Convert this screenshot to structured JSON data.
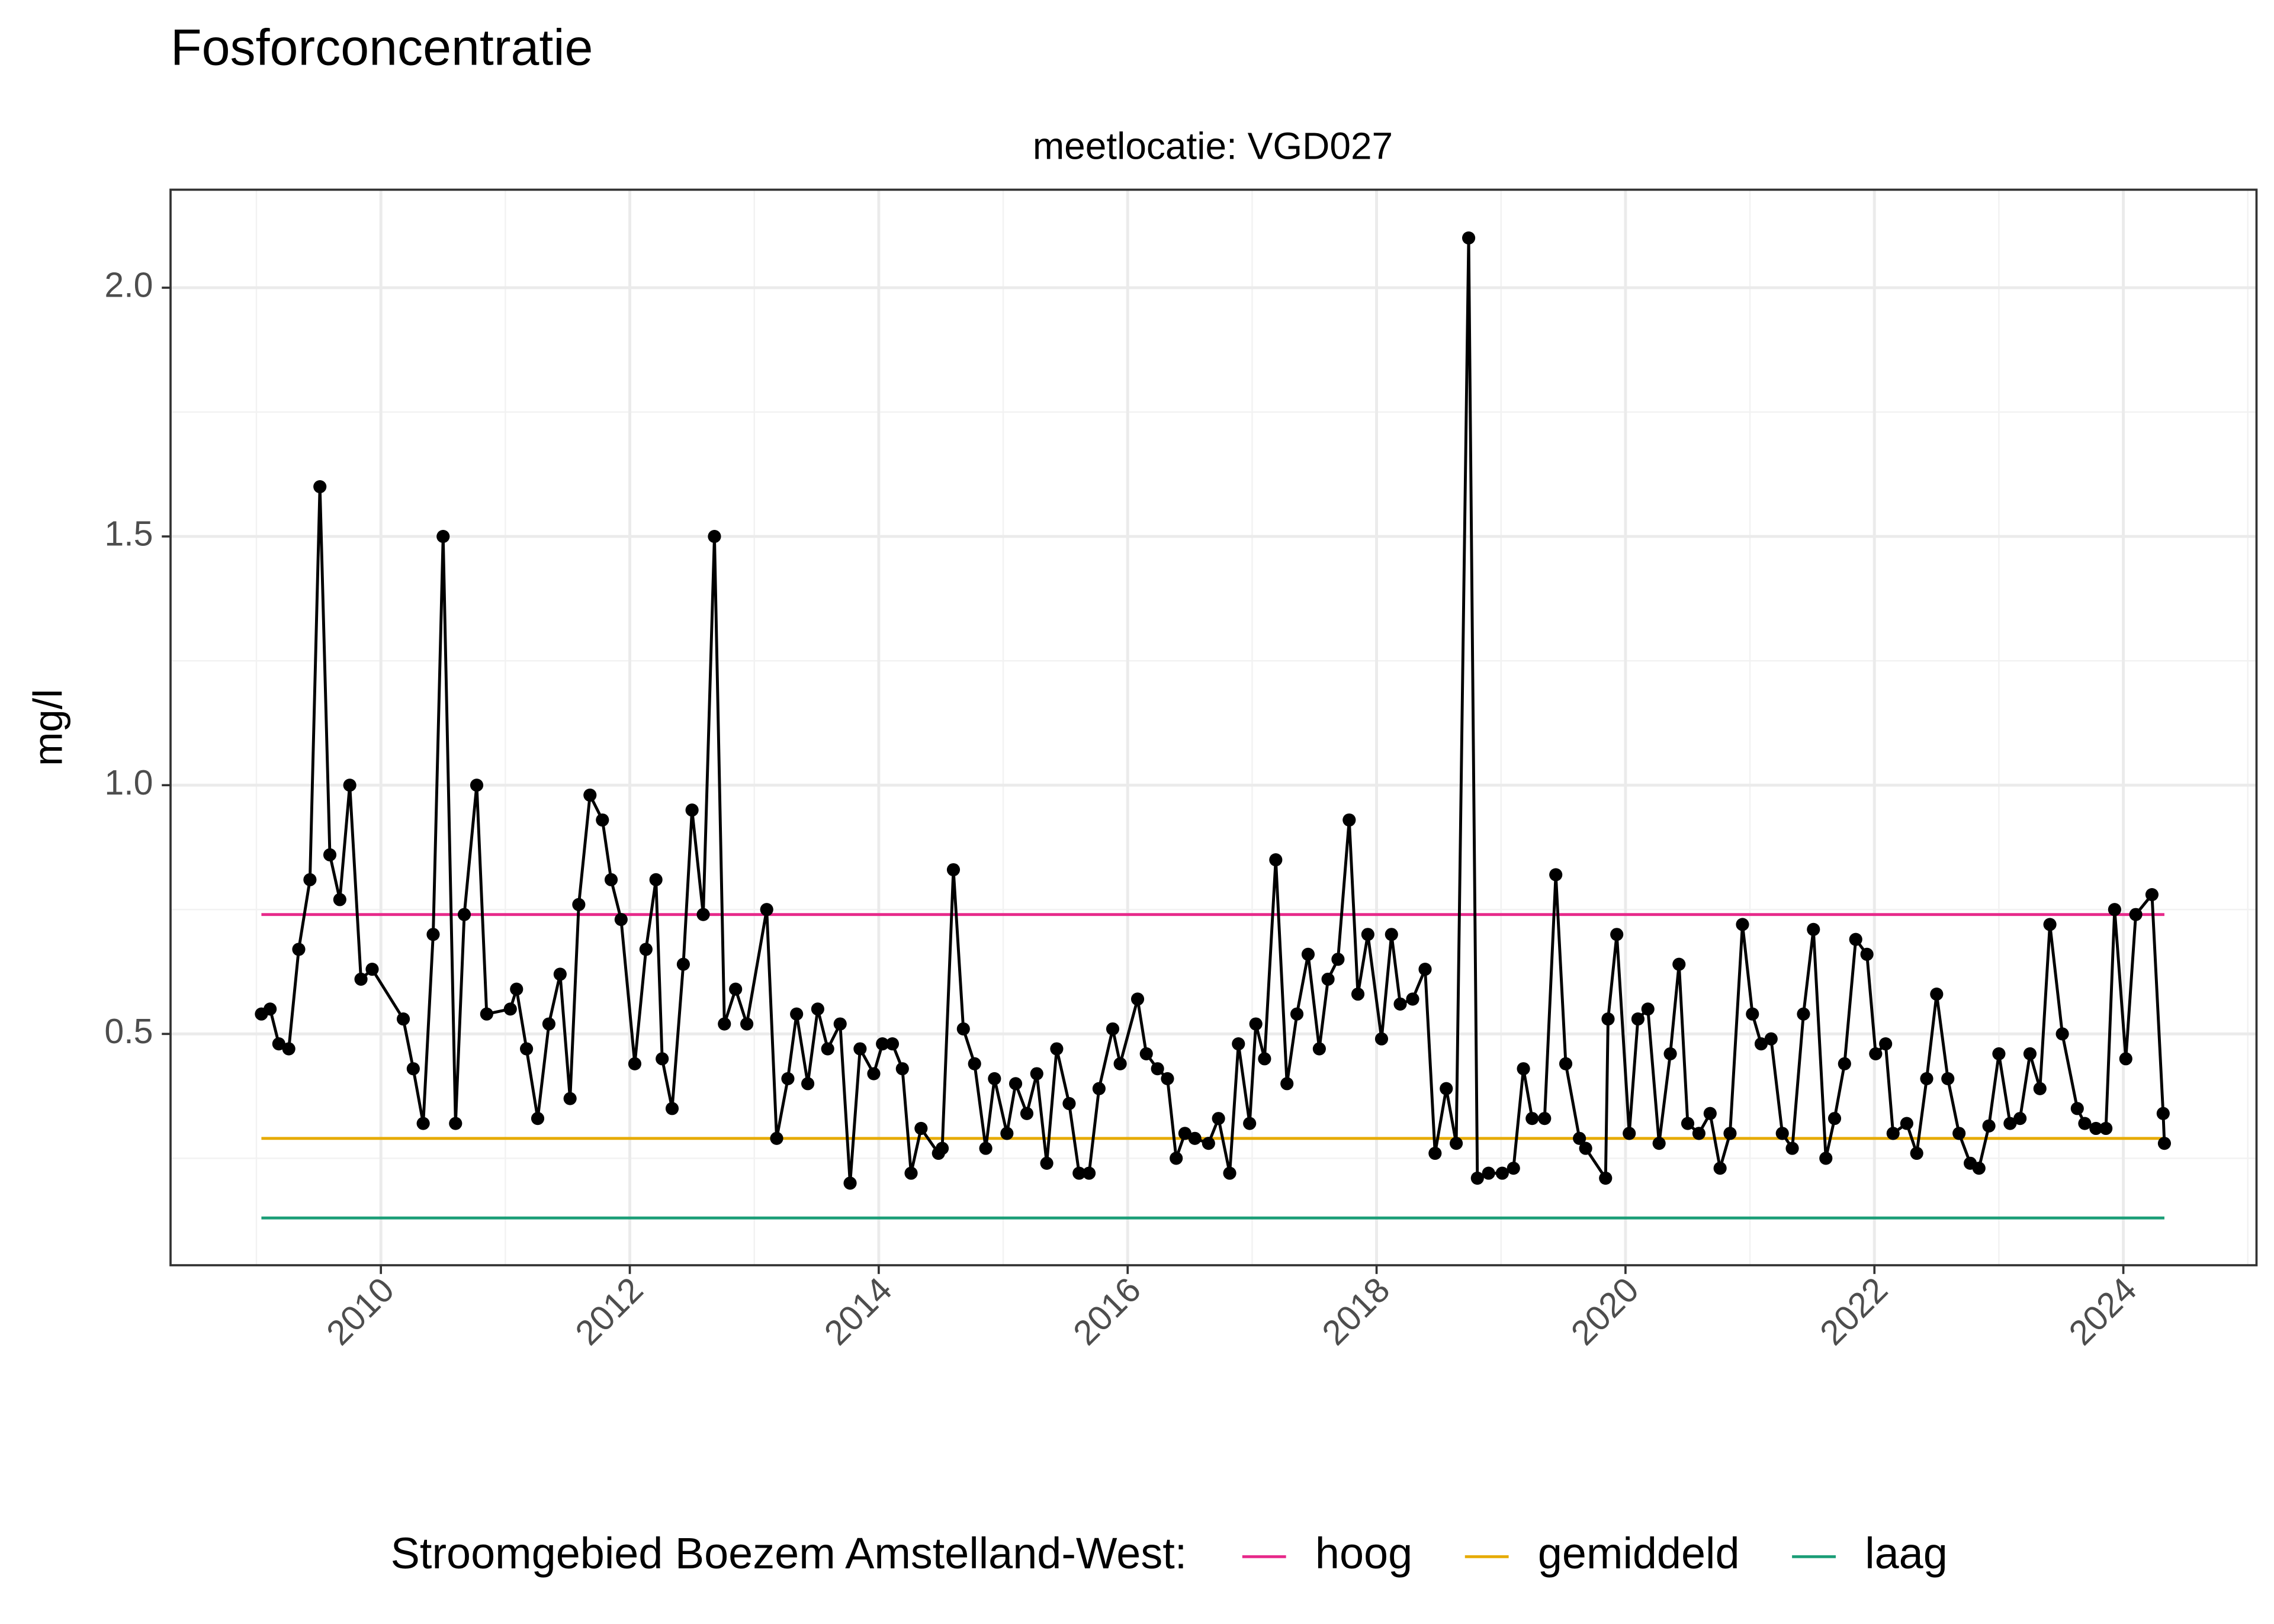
{
  "chart_data": {
    "type": "line",
    "title": "Fosforconcentratie",
    "subtitle": "meetlocatie: VGD027",
    "y_label": "mg/l",
    "color": "#000000",
    "x": [
      2009.04,
      2009.11,
      2009.18,
      2009.26,
      2009.34,
      2009.43,
      2009.51,
      2009.59,
      2009.67,
      2009.75,
      2009.84,
      2009.93,
      2010.18,
      2010.26,
      2010.34,
      2010.42,
      2010.5,
      2010.6,
      2010.67,
      2010.77,
      2010.85,
      2011.04,
      2011.09,
      2011.17,
      2011.26,
      2011.35,
      2011.44,
      2011.52,
      2011.59,
      2011.68,
      2011.78,
      2011.85,
      2011.93,
      2012.04,
      2012.13,
      2012.21,
      2012.26,
      2012.34,
      2012.43,
      2012.5,
      2012.59,
      2012.68,
      2012.76,
      2012.85,
      2012.94,
      2013.1,
      2013.18,
      2013.27,
      2013.34,
      2013.43,
      2013.51,
      2013.59,
      2013.69,
      2013.77,
      2013.85,
      2013.96,
      2014.03,
      2014.11,
      2014.19,
      2014.26,
      2014.34,
      2014.48,
      2014.51,
      2014.6,
      2014.68,
      2014.77,
      2014.86,
      2014.93,
      2015.03,
      2015.1,
      2015.19,
      2015.27,
      2015.35,
      2015.43,
      2015.53,
      2015.61,
      2015.69,
      2015.77,
      2015.88,
      2015.94,
      2016.08,
      2016.15,
      2016.24,
      2016.32,
      2016.39,
      2016.46,
      2016.54,
      2016.65,
      2016.73,
      2016.82,
      2016.89,
      2016.98,
      2017.03,
      2017.1,
      2017.19,
      2017.28,
      2017.36,
      2017.45,
      2017.54,
      2017.61,
      2017.69,
      2017.78,
      2017.85,
      2017.93,
      2018.04,
      2018.12,
      2018.19,
      2018.29,
      2018.39,
      2018.47,
      2018.56,
      2018.64,
      2018.74,
      2018.81,
      2018.9,
      2019.01,
      2019.1,
      2019.18,
      2019.25,
      2019.35,
      2019.44,
      2019.52,
      2019.63,
      2019.68,
      2019.84,
      2019.86,
      2019.93,
      2020.03,
      2020.1,
      2020.18,
      2020.27,
      2020.36,
      2020.43,
      2020.5,
      2020.59,
      2020.68,
      2020.76,
      2020.84,
      2020.94,
      2021.02,
      2021.09,
      2021.17,
      2021.26,
      2021.34,
      2021.43,
      2021.51,
      2021.61,
      2021.68,
      2021.76,
      2021.85,
      2021.94,
      2022.01,
      2022.09,
      2022.15,
      2022.26,
      2022.34,
      2022.42,
      2022.5,
      2022.59,
      2022.68,
      2022.77,
      2022.84,
      2022.92,
      2023.0,
      2023.09,
      2023.17,
      2023.25,
      2023.33,
      2023.41,
      2023.51,
      2023.63,
      2023.69,
      2023.78,
      2023.86,
      2023.93,
      2024.02,
      2024.1,
      2024.23,
      2024.32,
      2024.33
    ],
    "values": [
      0.54,
      0.55,
      0.48,
      0.47,
      0.67,
      0.81,
      1.6,
      0.86,
      0.77,
      1.0,
      0.61,
      0.63,
      0.53,
      0.43,
      0.32,
      0.7,
      1.5,
      0.32,
      0.74,
      1.0,
      0.54,
      0.55,
      0.59,
      0.47,
      0.33,
      0.52,
      0.62,
      0.37,
      0.76,
      0.98,
      0.93,
      0.81,
      0.73,
      0.44,
      0.67,
      0.81,
      0.45,
      0.35,
      0.64,
      0.95,
      0.74,
      1.5,
      0.52,
      0.59,
      0.52,
      0.75,
      0.29,
      0.41,
      0.54,
      0.4,
      0.55,
      0.47,
      0.52,
      0.2,
      0.47,
      0.42,
      0.48,
      0.48,
      0.43,
      0.22,
      0.31,
      0.26,
      0.27,
      0.83,
      0.51,
      0.44,
      0.27,
      0.41,
      0.3,
      0.4,
      0.34,
      0.42,
      0.24,
      0.47,
      0.36,
      0.22,
      0.22,
      0.39,
      0.51,
      0.44,
      0.57,
      0.46,
      0.43,
      0.41,
      0.25,
      0.3,
      0.29,
      0.28,
      0.33,
      0.22,
      0.48,
      0.32,
      0.52,
      0.45,
      0.85,
      0.4,
      0.54,
      0.66,
      0.47,
      0.61,
      0.65,
      0.93,
      0.58,
      0.7,
      0.49,
      0.7,
      0.56,
      0.57,
      0.63,
      0.26,
      0.39,
      0.28,
      2.1,
      0.21,
      0.22,
      0.22,
      0.23,
      0.43,
      0.33,
      0.33,
      0.82,
      0.44,
      0.29,
      0.27,
      0.21,
      0.53,
      0.7,
      0.3,
      0.53,
      0.55,
      0.28,
      0.46,
      0.64,
      0.32,
      0.3,
      0.34,
      0.23,
      0.3,
      0.72,
      0.54,
      0.48,
      0.49,
      0.3,
      0.27,
      0.54,
      0.71,
      0.25,
      0.33,
      0.44,
      0.69,
      0.66,
      0.46,
      0.48,
      0.3,
      0.32,
      0.26,
      0.41,
      0.58,
      0.41,
      0.3,
      0.24,
      0.23,
      0.315,
      0.46,
      0.32,
      0.33,
      0.46,
      0.39,
      0.72,
      0.5,
      0.35,
      0.32,
      0.31,
      0.31,
      0.75,
      0.45,
      0.74,
      0.78,
      0.34,
      0.28
    ],
    "reference_lines": [
      {
        "name": "hoog",
        "color": "#e7298a",
        "value": 0.74
      },
      {
        "name": "gemiddeld",
        "color": "#e6ab02",
        "value": 0.29
      },
      {
        "name": "laag",
        "color": "#1b9e77",
        "value": 0.13
      }
    ],
    "legend_title": "Stroomgebied Boezem Amstelland-West:",
    "legend_position": "bottom",
    "xlim": [
      2008.31,
      2025.07
    ],
    "xticks": [
      2010,
      2012,
      2014,
      2016,
      2018,
      2020,
      2022,
      2024
    ],
    "ylim": [
      0.035,
      2.197
    ],
    "yticks": [
      0.5,
      {
        "value": 1.0,
        "label": "1.0"
      },
      1.5,
      {
        "value": 2.0,
        "label": "2.0"
      }
    ],
    "grid": true
  }
}
